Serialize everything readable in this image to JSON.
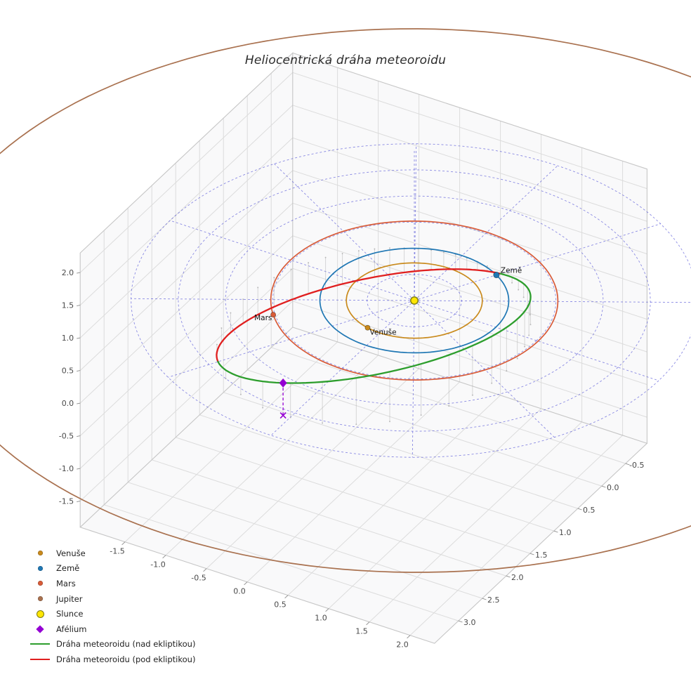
{
  "title": "Heliocentrická dráha meteoroidu",
  "chart_data": {
    "type": "3d-orbit-plot",
    "title": "Heliocentrická dráha meteoroidu",
    "axes": {
      "x": {
        "range": [
          -2.05,
          2.3
        ],
        "tick_values": [
          -1.5,
          -1.0,
          -0.5,
          0.0,
          0.5,
          1.0,
          1.5,
          2.0
        ],
        "tick_labels": [
          "-1.5",
          "-1.0",
          "-0.5",
          "0.0",
          "0.5",
          "1.0",
          "1.5",
          "2.0"
        ]
      },
      "y": {
        "range": [
          -0.95,
          3.5
        ],
        "tick_values": [
          -0.5,
          0.0,
          0.5,
          1.0,
          1.5,
          2.0,
          2.5,
          3.0
        ],
        "tick_labels": [
          "-0.5",
          "0.0",
          "0.5",
          "1.0",
          "1.5",
          "2.0",
          "2.5",
          "3.0"
        ]
      },
      "z": {
        "range": [
          -1.9,
          2.3
        ],
        "tick_values": [
          -1.5,
          -1.0,
          -0.5,
          0.0,
          0.5,
          1.0,
          1.5,
          2.0
        ],
        "tick_labels": [
          "-1.5",
          "-1.0",
          "-0.5",
          "0.0",
          "0.5",
          "1.0",
          "1.5",
          "2.0"
        ]
      }
    },
    "ecliptic_grid": {
      "circle_radii_au": [
        0.5,
        1.0,
        1.5,
        2.0,
        2.5,
        3.0
      ],
      "radial_lines": 12,
      "color": "#2f2fd0",
      "style": "dashed",
      "polar_axis_height_au": 2.3
    },
    "sun": {
      "label": "Slunce",
      "color": "#ffe603",
      "edge_color": "#7a7a12"
    },
    "planets": [
      {
        "name": "Venuše",
        "orbit_radius_au": 0.72,
        "color": "#c98a1c",
        "marker_longitude_deg": 103,
        "show_label": true
      },
      {
        "name": "Země",
        "orbit_radius_au": 1.0,
        "color": "#1f77b4",
        "marker_longitude_deg": -60,
        "show_label": true
      },
      {
        "name": "Mars",
        "orbit_radius_au": 1.52,
        "color": "#d85b38",
        "marker_longitude_deg": 139,
        "show_label": true
      },
      {
        "name": "Jupiter",
        "orbit_radius_au": 5.2,
        "color": "#a9714f",
        "marker_longitude_deg": null,
        "show_label": false
      }
    ],
    "meteoroid_orbit": {
      "semi_major_axis_au": 1.83,
      "eccentricity": 0.45,
      "inclination_deg": 22,
      "ascending_node_deg": -60,
      "arg_perihelion_deg": 330,
      "above_ecliptic_color": "#2d9e2d",
      "below_ecliptic_color": "#e01f1f",
      "above_ecliptic_label": "Dráha meteoroidu (nad ekliptikou)",
      "below_ecliptic_label": "Dráha meteoroidu (pod ekliptikou)"
    },
    "aphelion": {
      "label": "Afélium",
      "color": "#9400d3",
      "theta_deg": 150
    }
  },
  "legend": {
    "items": [
      {
        "label": "Venuše",
        "marker": "dot",
        "color": "#c98a1c",
        "icon": "venus-marker-icon"
      },
      {
        "label": "Země",
        "marker": "dot",
        "color": "#1f77b4",
        "icon": "earth-marker-icon"
      },
      {
        "label": "Mars",
        "marker": "dot",
        "color": "#d85b38",
        "icon": "mars-marker-icon"
      },
      {
        "label": "Jupiter",
        "marker": "dot",
        "color": "#a9714f",
        "icon": "jupiter-marker-icon"
      },
      {
        "label": "Slunce",
        "marker": "sun",
        "color": "#ffe603",
        "icon": "sun-marker-icon"
      },
      {
        "label": "Afélium",
        "marker": "diamond",
        "color": "#9400d3",
        "icon": "aphelion-marker-icon"
      },
      {
        "label": "Dráha meteoroidu (nad ekliptikou)",
        "marker": "line",
        "color": "#2d9e2d",
        "icon": "orbit-above-line-icon"
      },
      {
        "label": "Dráha meteoroidu (pod ekliptikou)",
        "marker": "line",
        "color": "#e01f1f",
        "icon": "orbit-below-line-icon"
      }
    ]
  }
}
